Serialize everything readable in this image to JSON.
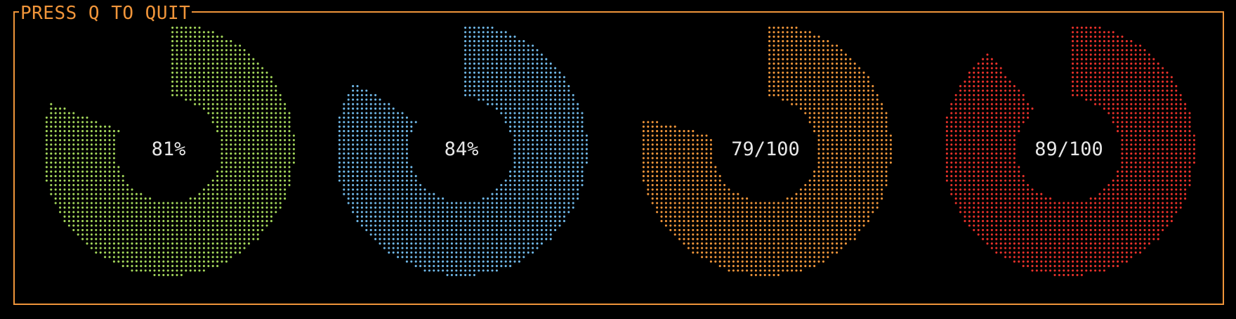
{
  "window": {
    "frame_title": "PRESS Q TO QUIT",
    "frame_color": "#f0953a",
    "background": "#000000"
  },
  "gauges": [
    {
      "label": "81%",
      "fraction": 0.81,
      "color": "#a3d65a"
    },
    {
      "label": "84%",
      "fraction": 0.84,
      "color": "#6fb8e8"
    },
    {
      "label": "79/100",
      "fraction": 0.79,
      "color": "#f0953a"
    },
    {
      "label": "89/100",
      "fraction": 0.89,
      "color": "#e8312a"
    }
  ]
}
